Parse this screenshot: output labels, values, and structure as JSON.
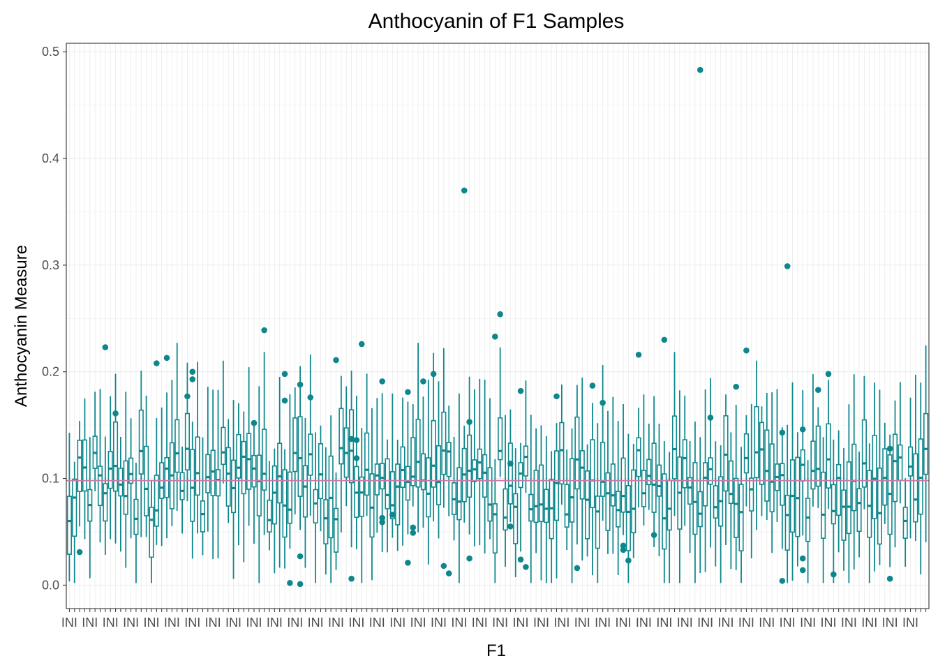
{
  "chart_data": {
    "type": "box",
    "title": "Anthocyanin of F1 Samples",
    "xlabel": "F1",
    "ylabel": "Anthocyanin Measure",
    "ylim": [
      -0.022,
      0.508
    ],
    "yticks": [
      0.0,
      0.1,
      0.2,
      0.3,
      0.4,
      0.5
    ],
    "ytick_labels": [
      "0.0",
      "0.1",
      "0.2",
      "0.3",
      "0.4",
      "0.5"
    ],
    "category_count": 168,
    "x_tick_labels_overlapping": true,
    "x_tick_label_leading_text": "INI",
    "reference_line": {
      "y": 0.098,
      "color": "#cc79a7"
    },
    "box_color": "#0e878c",
    "grid": true,
    "outliers": [
      {
        "category": 2,
        "y": 0.031
      },
      {
        "category": 7,
        "y": 0.223
      },
      {
        "category": 9,
        "y": 0.161
      },
      {
        "category": 17,
        "y": 0.208
      },
      {
        "category": 19,
        "y": 0.213
      },
      {
        "category": 23,
        "y": 0.177
      },
      {
        "category": 24,
        "y": 0.193
      },
      {
        "category": 24,
        "y": 0.2
      },
      {
        "category": 36,
        "y": 0.152
      },
      {
        "category": 38,
        "y": 0.239
      },
      {
        "category": 42,
        "y": 0.198
      },
      {
        "category": 42,
        "y": 0.173
      },
      {
        "category": 43,
        "y": 0.002
      },
      {
        "category": 45,
        "y": 0.188
      },
      {
        "category": 45,
        "y": 0.027
      },
      {
        "category": 45,
        "y": 0.001
      },
      {
        "category": 47,
        "y": 0.176
      },
      {
        "category": 52,
        "y": 0.211
      },
      {
        "category": 55,
        "y": 0.137
      },
      {
        "category": 55,
        "y": 0.006
      },
      {
        "category": 56,
        "y": 0.136
      },
      {
        "category": 56,
        "y": 0.119
      },
      {
        "category": 57,
        "y": 0.226
      },
      {
        "category": 61,
        "y": 0.191
      },
      {
        "category": 61,
        "y": 0.063
      },
      {
        "category": 61,
        "y": 0.059
      },
      {
        "category": 63,
        "y": 0.066
      },
      {
        "category": 66,
        "y": 0.181
      },
      {
        "category": 66,
        "y": 0.021
      },
      {
        "category": 67,
        "y": 0.054
      },
      {
        "category": 67,
        "y": 0.049
      },
      {
        "category": 69,
        "y": 0.191
      },
      {
        "category": 71,
        "y": 0.198
      },
      {
        "category": 73,
        "y": 0.018
      },
      {
        "category": 74,
        "y": 0.011
      },
      {
        "category": 77,
        "y": 0.37
      },
      {
        "category": 78,
        "y": 0.153
      },
      {
        "category": 78,
        "y": 0.025
      },
      {
        "category": 83,
        "y": 0.233
      },
      {
        "category": 84,
        "y": 0.254
      },
      {
        "category": 86,
        "y": 0.114
      },
      {
        "category": 86,
        "y": 0.055
      },
      {
        "category": 88,
        "y": 0.182
      },
      {
        "category": 88,
        "y": 0.024
      },
      {
        "category": 89,
        "y": 0.017
      },
      {
        "category": 95,
        "y": 0.177
      },
      {
        "category": 99,
        "y": 0.016
      },
      {
        "category": 102,
        "y": 0.187
      },
      {
        "category": 104,
        "y": 0.171
      },
      {
        "category": 108,
        "y": 0.037
      },
      {
        "category": 108,
        "y": 0.033
      },
      {
        "category": 109,
        "y": 0.023
      },
      {
        "category": 111,
        "y": 0.216
      },
      {
        "category": 114,
        "y": 0.047
      },
      {
        "category": 116,
        "y": 0.23
      },
      {
        "category": 123,
        "y": 0.483
      },
      {
        "category": 125,
        "y": 0.157
      },
      {
        "category": 130,
        "y": 0.186
      },
      {
        "category": 132,
        "y": 0.22
      },
      {
        "category": 139,
        "y": 0.143
      },
      {
        "category": 139,
        "y": 0.004
      },
      {
        "category": 140,
        "y": 0.299
      },
      {
        "category": 143,
        "y": 0.146
      },
      {
        "category": 143,
        "y": 0.025
      },
      {
        "category": 143,
        "y": 0.014
      },
      {
        "category": 146,
        "y": 0.183
      },
      {
        "category": 148,
        "y": 0.198
      },
      {
        "category": 149,
        "y": 0.01
      },
      {
        "category": 160,
        "y": 0.128
      },
      {
        "category": 160,
        "y": 0.006
      }
    ]
  }
}
